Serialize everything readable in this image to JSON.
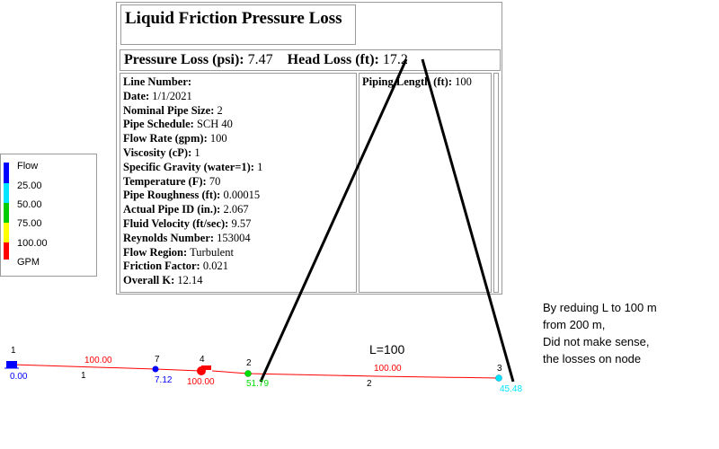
{
  "report": {
    "title": "Liquid Friction Pressure Loss",
    "pressure_loss_label": "Pressure Loss (psi):",
    "pressure_loss_value": "7.47",
    "head_loss_label": "Head Loss (ft):",
    "head_loss_value": "17.2",
    "details": [
      {
        "label": "Line Number:",
        "value": ""
      },
      {
        "label": "Date:",
        "value": "1/1/2021"
      },
      {
        "label": "Nominal Pipe Size:",
        "value": "2"
      },
      {
        "label": "Pipe Schedule:",
        "value": "SCH 40"
      },
      {
        "label": "Flow Rate (gpm):",
        "value": "100"
      },
      {
        "label": "Viscosity (cP):",
        "value": "1"
      },
      {
        "label": "Specific Gravity (water=1):",
        "value": "1"
      },
      {
        "label": "Temperature (F):",
        "value": "70"
      },
      {
        "label": "Pipe Roughness (ft):",
        "value": "0.00015"
      },
      {
        "label": "Actual Pipe ID (in.):",
        "value": "2.067"
      },
      {
        "label": "Fluid Velocity (ft/sec):",
        "value": "9.57"
      },
      {
        "label": "Reynolds Number:",
        "value": "153004"
      },
      {
        "label": "Flow Region:",
        "value": "Turbulent"
      },
      {
        "label": "Friction Factor:",
        "value": "0.021"
      },
      {
        "label": "Overall K:",
        "value": "12.14"
      }
    ],
    "piping_length_label": "Piping Length (ft):",
    "piping_length_value": "100"
  },
  "legend": {
    "title": "Flow",
    "levels": [
      "25.00",
      "50.00",
      "75.00",
      "100.00"
    ],
    "unit": "GPM",
    "colors": [
      "#0000ff",
      "#00e5ff",
      "#00cc00",
      "#ffff00",
      "#ff0000"
    ]
  },
  "network": {
    "nodes": [
      {
        "id": "1",
        "value": "0.00",
        "value_color": "#0000ff"
      },
      {
        "id": "7",
        "value": "7.12",
        "value_color": "#0000ff"
      },
      {
        "id": "4",
        "value": "100.00",
        "value_color": "#ff0000"
      },
      {
        "id": "2",
        "value": "51.79",
        "value_color": "#00dd00"
      },
      {
        "id": "3",
        "value": "45.48",
        "value_color": "#00e5ff"
      }
    ],
    "links": [
      {
        "id": "1",
        "flow": "100.00"
      },
      {
        "id": "2",
        "flow": "100.00"
      }
    ],
    "length_annotation": "L=100",
    "pipe_color": "#ff0000"
  },
  "annotation_note": {
    "lines": [
      "By reduing L to 100 m",
      "from 200 m,",
      "Did not make sense,",
      "the losses on node"
    ]
  }
}
